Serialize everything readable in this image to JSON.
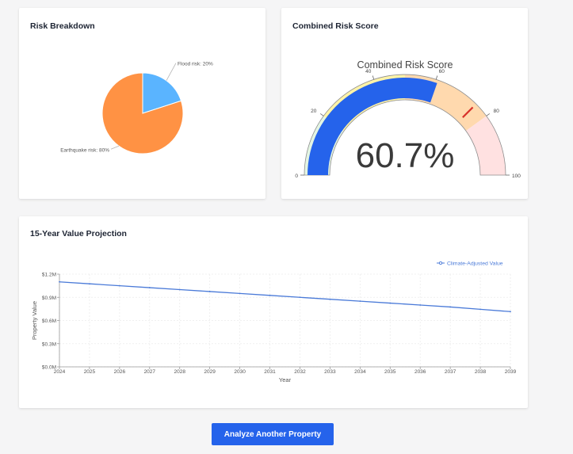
{
  "risk_card": {
    "title": "Risk Breakdown"
  },
  "gauge_card": {
    "title": "Combined Risk Score"
  },
  "projection_card": {
    "title": "15-Year Value Projection"
  },
  "action": {
    "analyze_label": "Analyze Another Property"
  },
  "colors": {
    "primary": "#2563eb",
    "pie_earthquake": "#ff9244",
    "pie_flood": "#5ab4ff",
    "line": "#4a7ad8",
    "needle": "#d8322c",
    "band_low": "#e3f5e3",
    "band_mid": "#fef3a8",
    "band_high": "#ffd9ae",
    "band_severe": "#ffe1e1"
  },
  "chart_data": [
    {
      "type": "pie",
      "title": "",
      "slices": [
        {
          "label": "Flood risk: 20%",
          "value": 20
        },
        {
          "label": "Earthquake risk: 80%",
          "value": 80
        }
      ]
    },
    {
      "type": "gauge",
      "title": "Combined Risk Score",
      "value": 60.7,
      "value_label": "60.7%",
      "range": [
        0,
        100
      ],
      "ticks": [
        0,
        20,
        40,
        60,
        80,
        100
      ],
      "bands": [
        {
          "from": 0,
          "to": 20,
          "color": "#e3f5e3"
        },
        {
          "from": 20,
          "to": 50,
          "color": "#fef3a8"
        },
        {
          "from": 50,
          "to": 80,
          "color": "#ffd9ae"
        },
        {
          "from": 80,
          "to": 100,
          "color": "#ffe1e1"
        }
      ],
      "threshold": 75
    },
    {
      "type": "line",
      "title": "",
      "xlabel": "Year",
      "ylabel": "Property Value",
      "x": [
        2024,
        2025,
        2026,
        2027,
        2028,
        2029,
        2030,
        2031,
        2032,
        2033,
        2034,
        2035,
        2036,
        2037,
        2038,
        2039
      ],
      "ylim": [
        0,
        1.2
      ],
      "yticks": [
        "$0.0M",
        "$0.3M",
        "$0.6M",
        "$0.9M",
        "$1.2M"
      ],
      "ytick_values": [
        0,
        0.3,
        0.6,
        0.9,
        1.2
      ],
      "series": [
        {
          "name": "Climate-Adjusted Value",
          "values": [
            1.1,
            1.075,
            1.05,
            1.025,
            1.0,
            0.975,
            0.95,
            0.925,
            0.9,
            0.875,
            0.85,
            0.825,
            0.8,
            0.775,
            0.745,
            0.715
          ]
        }
      ],
      "legend": "top-right",
      "grid": true
    }
  ]
}
